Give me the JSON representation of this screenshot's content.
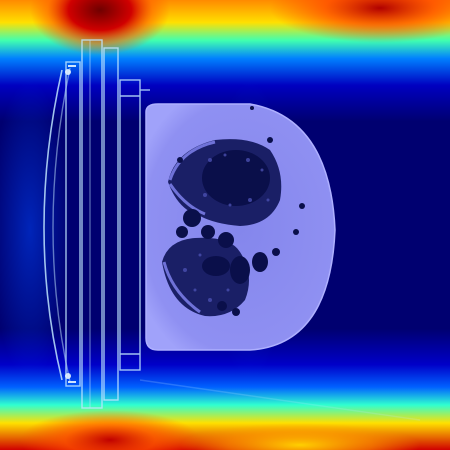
{
  "image": {
    "description_role": "ct-scan-with-attention-heatmap",
    "colormap": [
      "#00007a",
      "#0000c8",
      "#0040ff",
      "#00b4ff",
      "#30ffd0",
      "#a8ff40",
      "#ffe000",
      "#ff7000",
      "#d00000",
      "#800000"
    ],
    "body_tint": "#8c8cf2",
    "body_edge_tint": "#9a9cf8",
    "lung_fill": "#1a1f66",
    "air_fill": "#0a0f4a",
    "scanner_line": "#bfe6ff"
  }
}
